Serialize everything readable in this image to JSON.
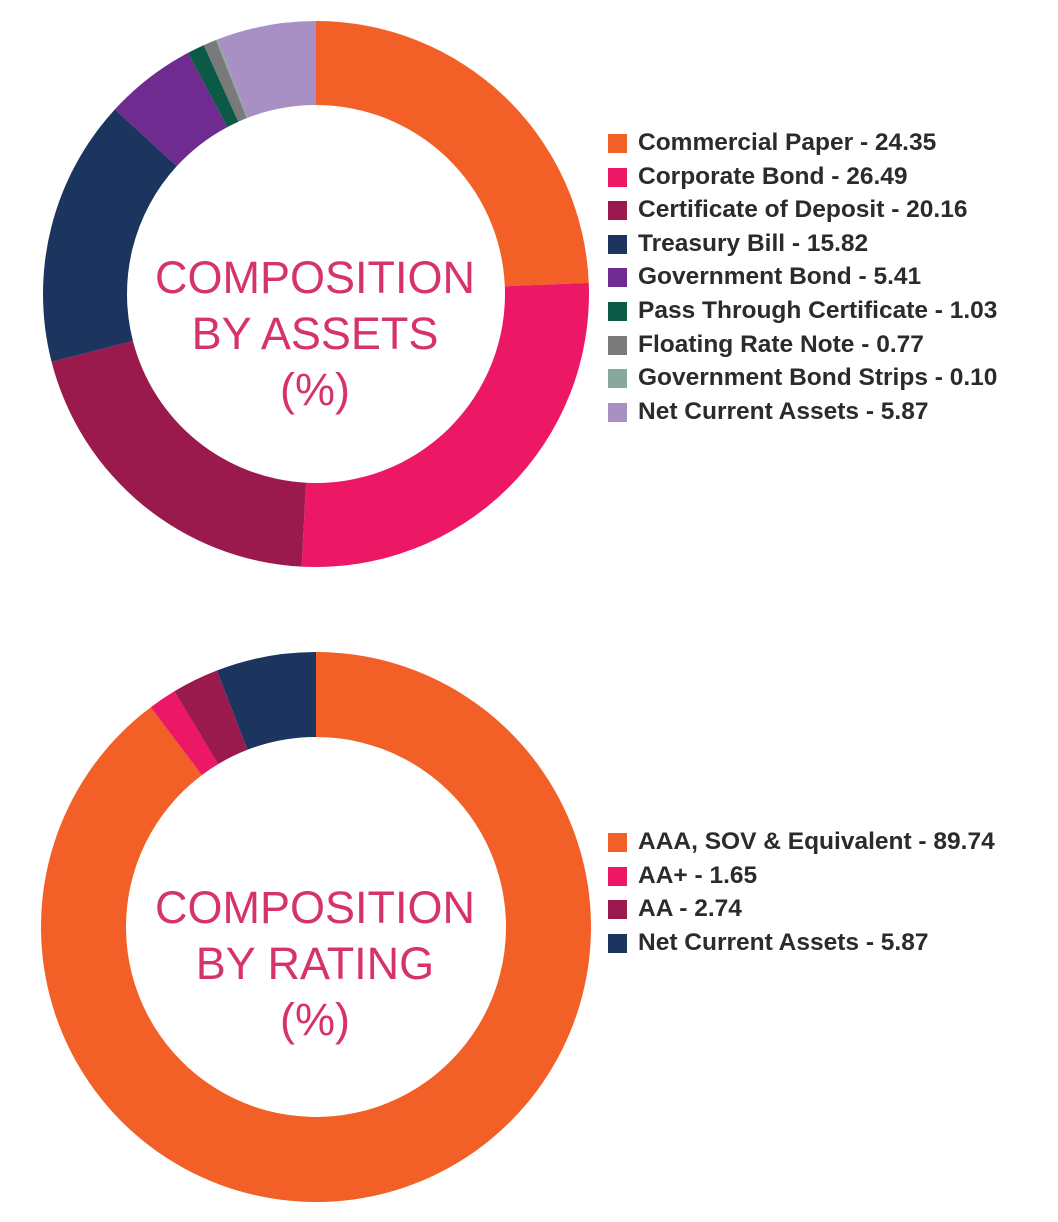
{
  "chart_data": [
    {
      "type": "pie",
      "subtype": "donut",
      "title_lines": [
        "COMPOSITION",
        "BY ASSETS",
        "(%)"
      ],
      "legend_position": "right",
      "series": [
        {
          "name": "Commercial Paper",
          "value": 24.35,
          "label": "Commercial Paper - 24.35",
          "color": "#f26027"
        },
        {
          "name": "Corporate Bond",
          "value": 26.49,
          "label": "Corporate Bond - 26.49",
          "color": "#ec1866"
        },
        {
          "name": "Certificate of Deposit",
          "value": 20.16,
          "label": "Certificate of Deposit - 20.16",
          "color": "#9a1a4e"
        },
        {
          "name": "Treasury Bill",
          "value": 15.82,
          "label": "Treasury Bill - 15.82",
          "color": "#1b355e"
        },
        {
          "name": "Government Bond",
          "value": 5.41,
          "label": "Government Bond - 5.41",
          "color": "#6f2b90"
        },
        {
          "name": "Pass Through Certificate",
          "value": 1.03,
          "label": "Pass Through Certificate - 1.03",
          "color": "#0a5a45"
        },
        {
          "name": "Floating Rate Note",
          "value": 0.77,
          "label": "Floating Rate Note - 0.77",
          "color": "#7a7a7a"
        },
        {
          "name": "Government Bond Strips",
          "value": 0.1,
          "label": "Government Bond Strips - 0.10",
          "color": "#87a89c"
        },
        {
          "name": "Net Current Assets",
          "value": 5.87,
          "label": "Net Current Assets - 5.87",
          "color": "#a88fc4"
        }
      ]
    },
    {
      "type": "pie",
      "subtype": "donut",
      "title_lines": [
        "COMPOSITION",
        "BY RATING",
        "(%)"
      ],
      "legend_position": "right",
      "series": [
        {
          "name": "AAA, SOV & Equivalent",
          "value": 89.74,
          "label": "AAA, SOV & Equivalent - 89.74",
          "color": "#f26027"
        },
        {
          "name": "AA+",
          "value": 1.65,
          "label": "AA+ - 1.65",
          "color": "#ec1866"
        },
        {
          "name": "AA",
          "value": 2.74,
          "label": "AA - 2.74",
          "color": "#9a1a4e"
        },
        {
          "name": "Net Current Assets",
          "value": 5.87,
          "label": "Net Current Assets - 5.87",
          "color": "#1b355e"
        }
      ]
    }
  ]
}
